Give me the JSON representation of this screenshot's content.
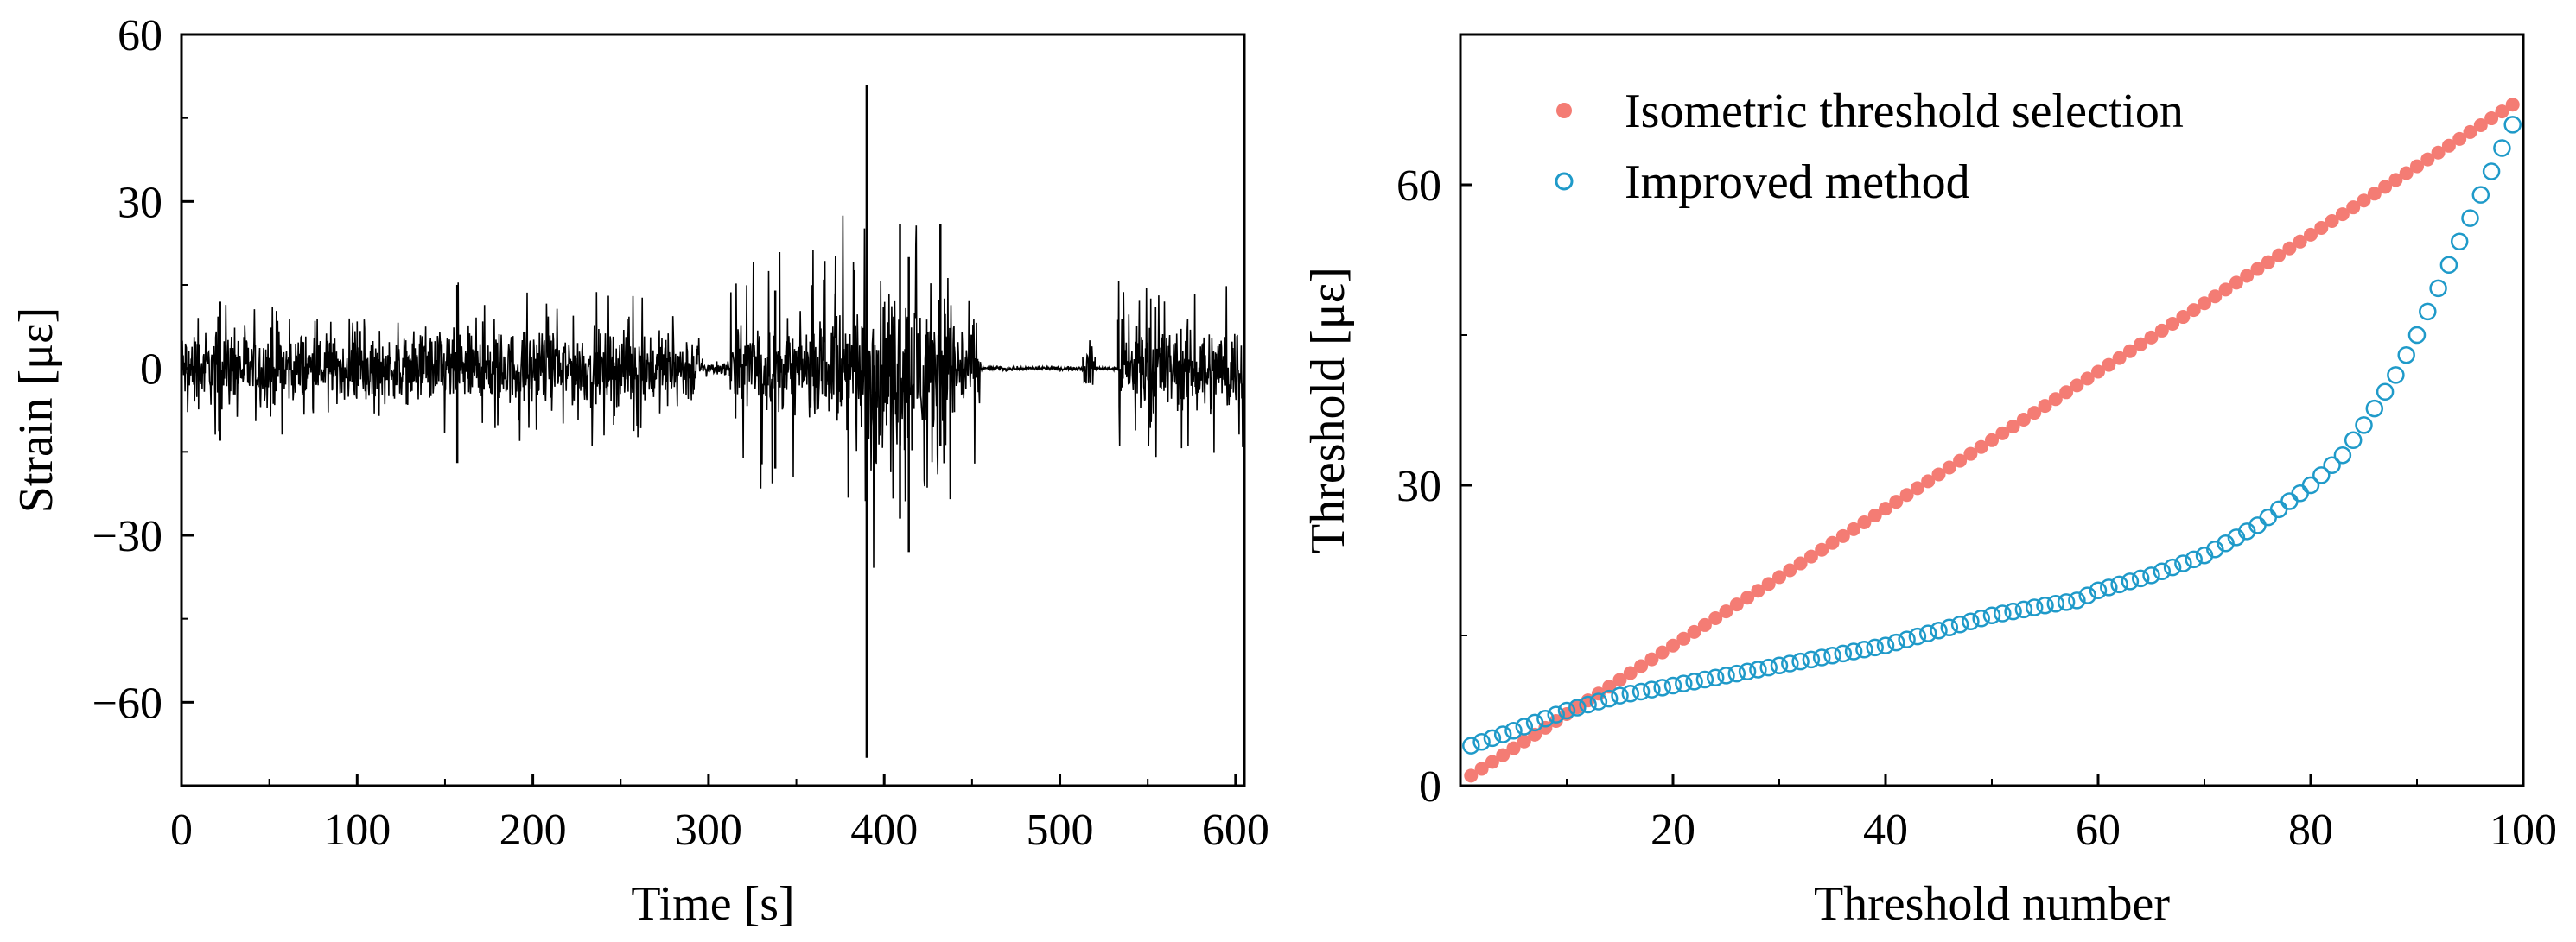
{
  "chart_data": [
    {
      "type": "line",
      "title": "",
      "xlabel": "Time [s]",
      "ylabel": "Strain [με]",
      "xlim": [
        0,
        605
      ],
      "ylim": [
        -75,
        60
      ],
      "xticks": [
        0,
        100,
        200,
        300,
        400,
        500,
        600
      ],
      "xtick_labels": [
        "0",
        "100",
        "200",
        "300",
        "400",
        "500",
        "600"
      ],
      "yticks": [
        -60,
        -30,
        0,
        30,
        60
      ],
      "ytick_labels": [
        "−60",
        "−30",
        "0",
        "30",
        "60"
      ],
      "grid": false,
      "series": [
        {
          "name": "Strain",
          "color": "#000000",
          "segments": [
            {
              "t": [
                0,
                72
              ],
              "amp": 6,
              "peak": 12
            },
            {
              "t": [
                72,
                140
              ],
              "amp": 5,
              "peak": 9
            },
            {
              "t": [
                140,
                160
              ],
              "amp": 6,
              "peak": 16
            },
            {
              "t": [
                160,
                295
              ],
              "amp": 6,
              "peak": 14
            },
            {
              "t": [
                295,
                312
              ],
              "amp": 1,
              "peak": 2
            },
            {
              "t": [
                312,
                372
              ],
              "amp": 7,
              "peak": 22
            },
            {
              "t": [
                372,
                388
              ],
              "amp": 12,
              "peak": 28
            },
            {
              "t": [
                388,
                395
              ],
              "amp": 20,
              "peak": 50
            },
            {
              "t": [
                395,
                440
              ],
              "amp": 13,
              "peak": 26
            },
            {
              "t": [
                440,
                455
              ],
              "amp": 8,
              "peak": 18
            },
            {
              "t": [
                455,
                513
              ],
              "amp": 0.3,
              "peak": 0.5
            },
            {
              "t": [
                513,
                520
              ],
              "amp": 3,
              "peak": 6
            },
            {
              "t": [
                520,
                533
              ],
              "amp": 0.3,
              "peak": 0.5
            },
            {
              "t": [
                533,
                605
              ],
              "amp": 7,
              "peak": 16
            }
          ],
          "extremes": [
            {
              "t": 390,
              "min": -70,
              "max": 51
            },
            {
              "t": 409,
              "min": -27,
              "max": 26
            },
            {
              "t": 414,
              "min": -33,
              "max": 20
            },
            {
              "t": 432,
              "min": -14,
              "max": 26
            },
            {
              "t": 157,
              "min": -17,
              "max": 15
            },
            {
              "t": 22,
              "min": -13,
              "max": 12
            },
            {
              "t": 338,
              "min": -18,
              "max": 14
            }
          ]
        }
      ]
    },
    {
      "type": "scatter",
      "title": "",
      "xlabel": "Threshold number",
      "ylabel": "Threshold [με]",
      "xlim": [
        0,
        100
      ],
      "ylim": [
        0,
        75
      ],
      "xticks": [
        20,
        40,
        60,
        80,
        100
      ],
      "xtick_labels": [
        "20",
        "40",
        "60",
        "80",
        "100"
      ],
      "yticks": [
        0,
        30,
        60
      ],
      "ytick_labels": [
        "0",
        "30",
        "60"
      ],
      "grid": false,
      "legend": "top-left",
      "series": [
        {
          "name": "Isometric threshold selection",
          "color": "#f47c74",
          "marker": "filled-circle",
          "x_range": [
            1,
            99
          ],
          "y_range": [
            1,
            68
          ]
        },
        {
          "name": "Improved method",
          "color": "#1f9ac9",
          "marker": "open-circle",
          "x_range": [
            1,
            99
          ],
          "curve": [
            [
              1,
              4
            ],
            [
              5,
              5.5
            ],
            [
              10,
              7.5
            ],
            [
              15,
              9
            ],
            [
              20,
              10
            ],
            [
              25,
              11
            ],
            [
              30,
              12
            ],
            [
              35,
              13
            ],
            [
              40,
              14
            ],
            [
              45,
              15.5
            ],
            [
              50,
              17
            ],
            [
              55,
              18
            ],
            [
              58,
              18.5
            ],
            [
              60,
              19.5
            ],
            [
              65,
              21
            ],
            [
              70,
              23
            ],
            [
              75,
              26
            ],
            [
              80,
              30
            ],
            [
              83,
              33
            ],
            [
              85,
              36
            ],
            [
              88,
              41
            ],
            [
              90,
              45
            ],
            [
              93,
              52
            ],
            [
              96,
              59
            ],
            [
              99,
              66
            ]
          ]
        }
      ]
    }
  ]
}
